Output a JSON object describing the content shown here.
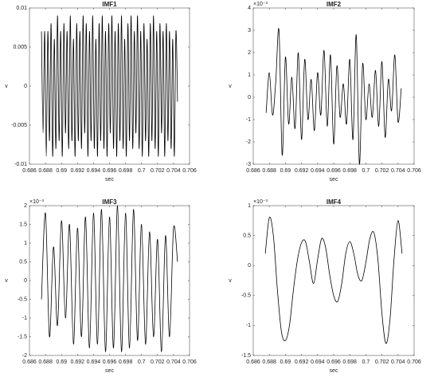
{
  "chart_data": [
    {
      "type": "line",
      "title": "IMF1",
      "xlabel": "sec",
      "ylabel": "v",
      "color": "#000000",
      "xlim": [
        0.686,
        0.706
      ],
      "xticks": [
        0.686,
        0.688,
        0.69,
        0.692,
        0.694,
        0.696,
        0.698,
        0.7,
        0.702,
        0.704,
        0.706
      ],
      "ylim": [
        -0.01,
        0.01
      ],
      "yticks": [
        -0.01,
        -0.005,
        0,
        0.005,
        0.01
      ],
      "x": [
        0.6875,
        0.6877,
        0.6879,
        0.6881,
        0.6883,
        0.6885,
        0.6887,
        0.6889,
        0.6891,
        0.6893,
        0.6895,
        0.6897,
        0.6899,
        0.6901,
        0.6903,
        0.6905,
        0.6907,
        0.6909,
        0.6911,
        0.6913,
        0.6915,
        0.6917,
        0.6919,
        0.6921,
        0.6923,
        0.6925,
        0.6927,
        0.6929,
        0.6931,
        0.6933,
        0.6935,
        0.6937,
        0.6939,
        0.6941,
        0.6943,
        0.6945,
        0.6947,
        0.6949,
        0.6951,
        0.6953,
        0.6955,
        0.6957,
        0.6959,
        0.6961,
        0.6963,
        0.6965,
        0.6967,
        0.6969,
        0.6971,
        0.6973,
        0.6975,
        0.6977,
        0.6979,
        0.6981,
        0.6983,
        0.6985,
        0.6987,
        0.6989,
        0.6991,
        0.6993,
        0.6995,
        0.6997,
        0.6999,
        0.7001,
        0.7003,
        0.7005,
        0.7007,
        0.7009,
        0.7011,
        0.7013,
        0.7015,
        0.7017,
        0.7019,
        0.7021,
        0.7023,
        0.7025,
        0.7027,
        0.7029,
        0.7031,
        0.7033,
        0.7035,
        0.7037,
        0.7039,
        0.7041,
        0.7043,
        0.7045
      ],
      "values": [
        0.007,
        -0.006,
        0.007,
        -0.009,
        0.007,
        -0.007,
        0.008,
        -0.009,
        0.006,
        -0.008,
        0.009,
        -0.007,
        0.007,
        -0.009,
        0.008,
        -0.006,
        0.007,
        -0.008,
        0.009,
        -0.007,
        0.006,
        -0.009,
        0.008,
        -0.007,
        0.007,
        -0.008,
        0.009,
        -0.006,
        0.008,
        -0.009,
        0.007,
        -0.007,
        0.009,
        -0.008,
        0.006,
        -0.009,
        0.008,
        -0.007,
        0.009,
        -0.008,
        0.007,
        -0.009,
        0.008,
        -0.006,
        0.009,
        -0.008,
        0.007,
        -0.009,
        0.008,
        -0.007,
        0.009,
        -0.008,
        0.006,
        -0.009,
        0.008,
        -0.007,
        0.009,
        -0.008,
        0.007,
        -0.006,
        0.009,
        -0.008,
        0.007,
        -0.009,
        0.008,
        -0.007,
        0.006,
        -0.009,
        0.008,
        -0.007,
        0.009,
        -0.008,
        0.007,
        -0.009,
        0.008,
        -0.006,
        0.007,
        -0.009,
        0.008,
        -0.007,
        0.007,
        -0.008,
        0.006,
        -0.009,
        0.007,
        -0.002
      ]
    },
    {
      "type": "line",
      "title": "IMF2",
      "xlabel": "sec",
      "ylabel": "v",
      "exponent": "×10⁻³",
      "color": "#000000",
      "xlim": [
        0.686,
        0.706
      ],
      "xticks": [
        0.686,
        0.688,
        0.69,
        0.692,
        0.694,
        0.696,
        0.698,
        0.7,
        0.702,
        0.704,
        0.706
      ],
      "ylim": [
        -3,
        4
      ],
      "yticks": [
        -3,
        -2,
        -1,
        0,
        1,
        2,
        3,
        4
      ],
      "x": [
        0.6876,
        0.688,
        0.6884,
        0.6888,
        0.6892,
        0.6896,
        0.69,
        0.6904,
        0.6908,
        0.6912,
        0.6916,
        0.692,
        0.6924,
        0.6928,
        0.6932,
        0.6936,
        0.694,
        0.6944,
        0.6948,
        0.6952,
        0.6956,
        0.696,
        0.6964,
        0.6968,
        0.6972,
        0.6976,
        0.698,
        0.6984,
        0.6988,
        0.6992,
        0.6996,
        0.7,
        0.7004,
        0.7008,
        0.7012,
        0.7016,
        0.702,
        0.7024,
        0.7028,
        0.7032,
        0.7036,
        0.704,
        0.7044
      ],
      "values": [
        -0.7,
        1.1,
        -0.8,
        0.7,
        3.0,
        -2.6,
        1.8,
        -1.2,
        0.9,
        -1.4,
        2.0,
        -1.9,
        1.7,
        -1.0,
        0.8,
        -1.5,
        1.1,
        -0.8,
        2.1,
        -1.3,
        1.9,
        -2.1,
        1.4,
        -0.9,
        0.6,
        -1.2,
        1.7,
        -1.9,
        2.8,
        -3.0,
        1.5,
        -1.0,
        0.6,
        -0.9,
        1.2,
        -1.3,
        1.6,
        -1.8,
        0.8,
        -0.6,
        1.9,
        -1.1,
        0.4
      ]
    },
    {
      "type": "line",
      "title": "IMF3",
      "xlabel": "sec",
      "ylabel": "v",
      "exponent": "×10⁻³",
      "color": "#000000",
      "xlim": [
        0.686,
        0.706
      ],
      "xticks": [
        0.686,
        0.688,
        0.69,
        0.692,
        0.694,
        0.696,
        0.698,
        0.7,
        0.702,
        0.704,
        0.706
      ],
      "ylim": [
        -2,
        2
      ],
      "yticks": [
        -2,
        -1.5,
        -1,
        -0.5,
        0,
        0.5,
        1,
        1.5,
        2
      ],
      "x": [
        0.6875,
        0.688,
        0.6885,
        0.689,
        0.6895,
        0.69,
        0.6905,
        0.691,
        0.6915,
        0.692,
        0.6925,
        0.693,
        0.6935,
        0.694,
        0.6945,
        0.695,
        0.6955,
        0.696,
        0.6965,
        0.697,
        0.6975,
        0.698,
        0.6985,
        0.699,
        0.6995,
        0.7,
        0.7005,
        0.701,
        0.7015,
        0.702,
        0.7025,
        0.703,
        0.7035,
        0.704,
        0.7045
      ],
      "values": [
        -0.5,
        1.8,
        -1.5,
        0.9,
        -1.2,
        1.6,
        -1.0,
        1.5,
        -1.7,
        1.4,
        -1.5,
        1.7,
        -1.8,
        1.8,
        -1.7,
        1.9,
        -1.9,
        1.7,
        -1.8,
        2.0,
        -1.9,
        1.8,
        -1.8,
        1.9,
        -1.6,
        1.5,
        -1.7,
        1.3,
        -1.5,
        1.1,
        -1.9,
        1.2,
        -1.5,
        1.4,
        0.5
      ]
    },
    {
      "type": "line",
      "title": "IMF4",
      "xlabel": "sec",
      "ylabel": "v",
      "exponent": "×10⁻³",
      "color": "#000000",
      "xlim": [
        0.686,
        0.706
      ],
      "xticks": [
        0.686,
        0.688,
        0.69,
        0.692,
        0.694,
        0.696,
        0.698,
        0.7,
        0.702,
        0.704,
        0.706
      ],
      "ylim": [
        -1.5,
        1
      ],
      "yticks": [
        -1.5,
        -1,
        -0.5,
        0,
        0.5,
        1
      ],
      "x": [
        0.6875,
        0.688,
        0.6885,
        0.689,
        0.6895,
        0.69,
        0.6905,
        0.691,
        0.6915,
        0.692,
        0.6925,
        0.693,
        0.6935,
        0.694,
        0.6945,
        0.695,
        0.6955,
        0.696,
        0.6965,
        0.697,
        0.6975,
        0.698,
        0.6985,
        0.699,
        0.6995,
        0.7,
        0.7005,
        0.701,
        0.7015,
        0.702,
        0.7025,
        0.703,
        0.7035,
        0.704,
        0.7045
      ],
      "values": [
        0.2,
        0.8,
        0.5,
        -0.4,
        -1.1,
        -1.25,
        -1.0,
        -0.4,
        0.1,
        0.38,
        0.4,
        0.05,
        -0.3,
        0.1,
        0.45,
        0.3,
        -0.15,
        -0.5,
        -0.6,
        -0.3,
        0.2,
        0.4,
        0.2,
        -0.15,
        -0.25,
        0.05,
        0.45,
        0.55,
        0.1,
        -0.8,
        -1.3,
        -0.9,
        0.1,
        0.75,
        0.2
      ]
    }
  ]
}
